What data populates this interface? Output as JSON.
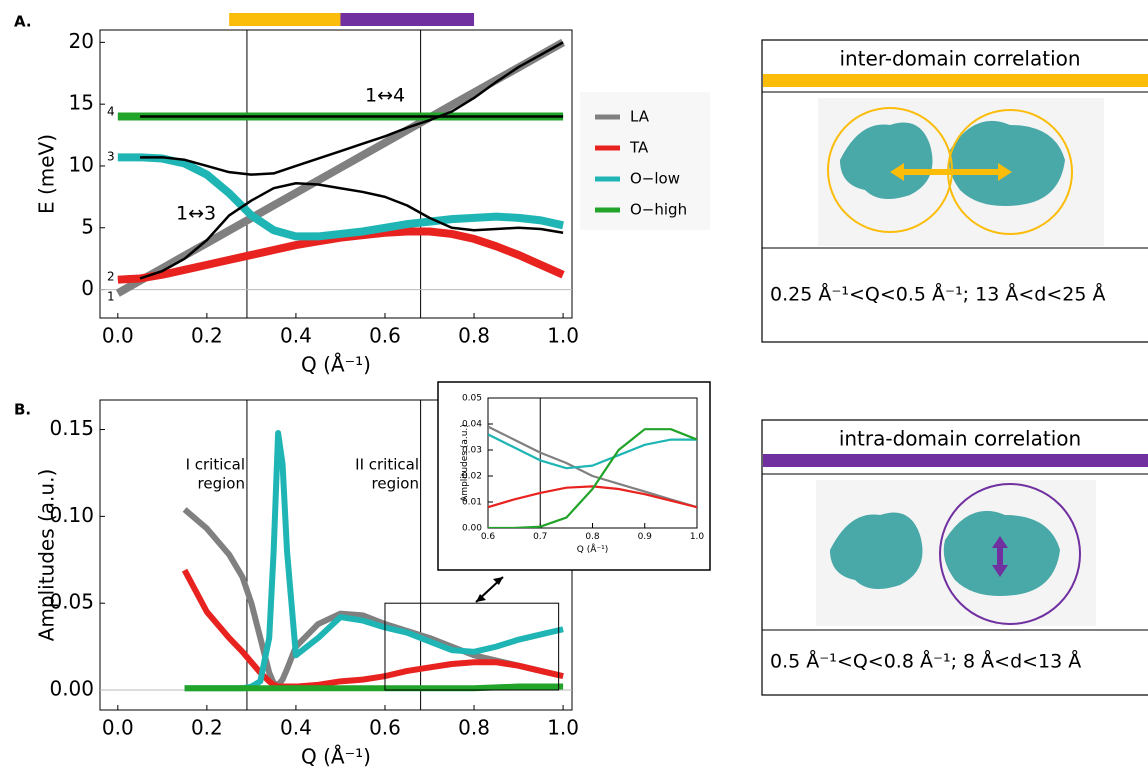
{
  "panel_labels": [
    "A.",
    "B."
  ],
  "chart_data": [
    {
      "type": "line",
      "xlim": [
        -0.04,
        1.02
      ],
      "ylim": [
        -2.3,
        21
      ],
      "xticks": [
        {
          "value": 0,
          "label": "0.0"
        },
        0.2,
        0.4,
        0.6,
        0.8,
        {
          "value": 1,
          "label": "1.0"
        }
      ],
      "yticks": [
        0,
        5,
        10,
        15,
        20
      ],
      "x_label": "Q (Å⁻¹)",
      "y_label": "E (meV)",
      "x": [
        0,
        0.05,
        0.1,
        0.15,
        0.2,
        0.25,
        0.3,
        0.35,
        0.4,
        0.45,
        0.5,
        0.55,
        0.6,
        0.65,
        0.7,
        0.75,
        0.8,
        0.85,
        0.9,
        0.95,
        1.0
      ],
      "series": [
        {
          "name": "LA",
          "color": "#808080",
          "values": [
            -0.3,
            0.72,
            1.73,
            2.75,
            3.76,
            4.78,
            5.79,
            6.81,
            7.82,
            8.84,
            9.85,
            10.87,
            11.88,
            12.9,
            13.91,
            14.93,
            15.94,
            16.96,
            17.97,
            18.99,
            20
          ]
        },
        {
          "name": "TA",
          "color": "#e8231f",
          "values": [
            0.8,
            0.9,
            1.2,
            1.6,
            2.0,
            2.4,
            2.8,
            3.2,
            3.6,
            3.9,
            4.2,
            4.4,
            4.6,
            4.7,
            4.7,
            4.5,
            4.1,
            3.5,
            2.8,
            2.0,
            1.2
          ]
        },
        {
          "name": "O−low",
          "color": "#1fb5b5",
          "values": [
            10.7,
            10.7,
            10.6,
            10.2,
            9.3,
            7.8,
            6.0,
            4.8,
            4.3,
            4.3,
            4.5,
            4.7,
            5.0,
            5.3,
            5.5,
            5.7,
            5.8,
            5.9,
            5.8,
            5.6,
            5.2
          ]
        },
        {
          "name": "O−high",
          "color": "#22a32a",
          "values": [
            14,
            14,
            14,
            14,
            14,
            14,
            14,
            14,
            14,
            14,
            14,
            14,
            14,
            14,
            14,
            14,
            14,
            14,
            14,
            14,
            14
          ]
        }
      ],
      "other_lines": [
        {
          "color": "#000000",
          "values": [
            null,
            14,
            14,
            14,
            14,
            14,
            14,
            14,
            14,
            14,
            14,
            14,
            14,
            14,
            14,
            14,
            14,
            14,
            14,
            14,
            14
          ]
        },
        {
          "color": "#000000",
          "values": [
            null,
            10.7,
            10.7,
            10.5,
            10.0,
            9.5,
            9.3,
            9.4,
            10.0,
            10.6,
            11.2,
            11.8,
            12.4,
            13.1,
            13.7,
            14.4,
            15.5,
            16.8,
            18.0,
            19.0,
            20.0
          ]
        },
        {
          "color": "#000000",
          "values": [
            null,
            0.9,
            1.5,
            2.5,
            4.0,
            6.0,
            7.2,
            8.2,
            8.6,
            8.5,
            8.2,
            7.9,
            7.5,
            6.8,
            5.8,
            5.0,
            4.8,
            4.9,
            5.0,
            4.9,
            4.6
          ]
        }
      ],
      "vlines": [
        0.29,
        0.68
      ],
      "regions": [
        {
          "from": 0.25,
          "to": 0.5,
          "color": "#fbbc0a"
        },
        {
          "from": 0.5,
          "to": 0.8,
          "color": "#7030a0"
        }
      ],
      "mode_labels": [
        "1",
        "2",
        "3",
        "4"
      ],
      "annotations": [
        "1↔4",
        "1↔3"
      ]
    },
    {
      "type": "line",
      "xlim": [
        -0.04,
        1.02
      ],
      "ylim": [
        -0.0115,
        0.167
      ],
      "xticks": [
        {
          "value": 0,
          "label": "0.0"
        },
        0.2,
        0.4,
        0.6,
        0.8,
        {
          "value": 1,
          "label": "1.0"
        }
      ],
      "yticks": [
        {
          "value": 0,
          "label": "0.00"
        },
        0.05,
        {
          "value": 0.1,
          "label": "0.10"
        },
        0.15
      ],
      "x_label": "Q (Å⁻¹)",
      "y_label": "Amplitudes (a.u.)",
      "x": [
        0.15,
        0.2,
        0.25,
        0.28,
        0.3,
        0.32,
        0.34,
        0.35,
        0.36,
        0.37,
        0.38,
        0.4,
        0.45,
        0.5,
        0.55,
        0.6,
        0.65,
        0.7,
        0.75,
        0.8,
        0.85,
        0.9,
        0.95,
        1.0
      ],
      "series": [
        {
          "color": "#808080",
          "values": [
            0.104,
            0.093,
            0.078,
            0.065,
            0.05,
            0.03,
            0.01,
            0.004,
            0.003,
            0.006,
            0.012,
            0.025,
            0.038,
            0.044,
            0.043,
            0.038,
            0.034,
            0.03,
            0.025,
            0.02,
            0.017,
            0.014,
            0.011,
            0.008
          ]
        },
        {
          "color": "#e8231f",
          "values": [
            0.069,
            0.045,
            0.03,
            0.022,
            0.016,
            0.01,
            0.005,
            0.003,
            0.002,
            0.002,
            0.002,
            0.002,
            0.003,
            0.005,
            0.006,
            0.008,
            0.011,
            0.013,
            0.015,
            0.016,
            0.016,
            0.014,
            0.011,
            0.008
          ]
        },
        {
          "color": "#1fb5b5",
          "values": [
            0.001,
            0.001,
            0.001,
            0.001,
            0.002,
            0.005,
            0.03,
            0.08,
            0.148,
            0.13,
            0.08,
            0.02,
            0.03,
            0.042,
            0.04,
            0.036,
            0.033,
            0.028,
            0.023,
            0.022,
            0.025,
            0.029,
            0.032,
            0.035
          ]
        },
        {
          "color": "#22a32a",
          "values": [
            0.001,
            0.001,
            0.001,
            0.001,
            0.001,
            0.001,
            0.001,
            0.001,
            0.001,
            0.001,
            0.001,
            0.001,
            0.001,
            0.001,
            0.001,
            0.001,
            0.001,
            0.001,
            0.001,
            0.001,
            0.0015,
            0.002,
            0.002,
            0.002
          ]
        }
      ],
      "vlines": [
        0.29,
        0.68
      ],
      "zoom_box": {
        "x": [
          0.6,
          0.99
        ],
        "y": [
          0,
          0.05
        ]
      },
      "annotations": [
        [
          "I critical",
          "region"
        ],
        [
          "II critical",
          "region"
        ]
      ]
    },
    {
      "type": "line",
      "xlim": [
        0.6,
        1.0
      ],
      "ylim": [
        0,
        0.05
      ],
      "xticks": [
        0.6,
        0.7,
        0.8,
        0.9,
        {
          "value": 1,
          "label": "1.0"
        }
      ],
      "yticks": [
        {
          "value": 0,
          "label": "0.00"
        },
        0.01,
        0.02,
        0.03,
        0.04,
        0.05
      ],
      "x_label": "Q (Å⁻¹)",
      "y_label": "Amplitudes (a.u.)",
      "x": [
        0.6,
        0.65,
        0.7,
        0.75,
        0.8,
        0.85,
        0.9,
        0.95,
        1.0
      ],
      "series": [
        {
          "color": "#808080",
          "values": [
            0.039,
            0.034,
            0.029,
            0.025,
            0.02,
            0.017,
            0.014,
            0.011,
            0.008
          ]
        },
        {
          "color": "#e8231f",
          "values": [
            0.008,
            0.011,
            0.0135,
            0.0155,
            0.016,
            0.015,
            0.013,
            0.0105,
            0.008
          ]
        },
        {
          "color": "#1fb5b5",
          "values": [
            0.036,
            0.031,
            0.026,
            0.023,
            0.024,
            0.028,
            0.032,
            0.034,
            0.034
          ]
        },
        {
          "color": "#22a32a",
          "values": [
            0,
            0,
            0.0005,
            0.004,
            0.015,
            0.03,
            0.038,
            0.038,
            0.034
          ]
        }
      ],
      "vlines": [
        0.7
      ]
    }
  ],
  "panels": [
    {
      "title": "inter-domain correlation",
      "color": "#fbbc0a",
      "caption": "0.25 Å⁻¹<Q<0.5 Å⁻¹; 13 Å<d<25 Å"
    },
    {
      "title": "intra-domain correlation",
      "color": "#7030a0",
      "caption": "0.5 Å⁻¹<Q<0.8 Å⁻¹; 8 Å<d<13 Å"
    }
  ]
}
